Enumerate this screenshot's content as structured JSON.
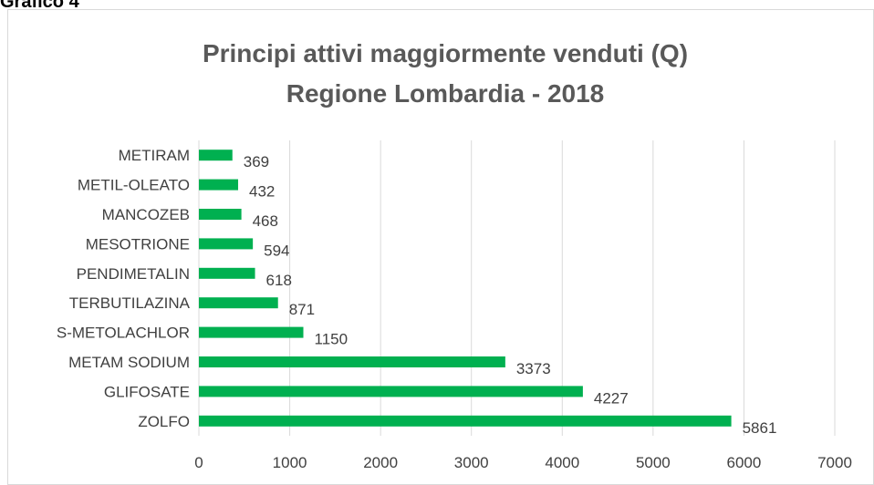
{
  "caption": "Grafico 4",
  "chart_data": {
    "type": "bar",
    "orientation": "horizontal",
    "title": "Principi attivi maggiormente venduti (Q)",
    "subtitle": "Regione Lombardia - 2018",
    "categories": [
      "METIRAM",
      "METIL-OLEATO",
      "MANCOZEB",
      "MESOTRIONE",
      "PENDIMETALIN",
      "TERBUTILAZINA",
      "S-METOLACHLOR",
      "METAM SODIUM",
      "GLIFOSATE",
      "ZOLFO"
    ],
    "values": [
      369,
      432,
      468,
      594,
      618,
      871,
      1150,
      3373,
      4227,
      5861
    ],
    "color": "#00b050",
    "xlim": [
      0,
      7000
    ],
    "xticks": [
      0,
      1000,
      2000,
      3000,
      4000,
      5000,
      6000,
      7000
    ],
    "grid": true,
    "data_labels": true
  }
}
